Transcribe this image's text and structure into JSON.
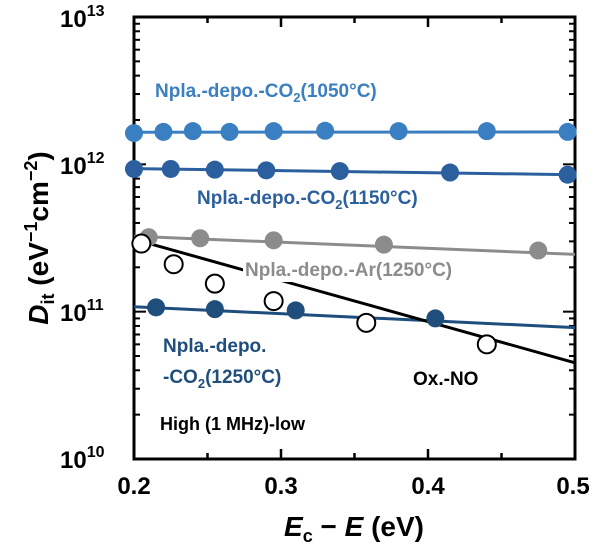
{
  "chart_data": {
    "type": "scatter",
    "title": "",
    "xlabel": {
      "main": "E",
      "sub1": "c",
      "minus": " − ",
      "var": "E",
      "unit": " (eV)"
    },
    "ylabel": {
      "main": "D",
      "sub": "it",
      "unit_pre": " (eV",
      "exp1": "−1",
      "unit_mid": "cm",
      "exp2": "−2",
      "unit_post": ")"
    },
    "xlim": [
      0.2,
      0.5
    ],
    "ylim": [
      10000000000.0,
      10000000000000.0
    ],
    "yscale": "log",
    "x_ticks": [
      "0.2",
      "0.3",
      "0.4",
      "0.5"
    ],
    "y_ticks": [
      {
        "base": "10",
        "exp": "10"
      },
      {
        "base": "10",
        "exp": "11"
      },
      {
        "base": "10",
        "exp": "12"
      },
      {
        "base": "10",
        "exp": "13"
      }
    ],
    "annotation": "High (1 MHz)-low",
    "series": [
      {
        "name": "Npla.-depo.-CO2(1050°C)",
        "label_parts": [
          "Npla.-depo.-CO",
          "2",
          "(1050°C)"
        ],
        "color": "#3a7fc1",
        "marker": "filled",
        "points": [
          [
            0.2,
            1630000000000.0
          ],
          [
            0.22,
            1660000000000.0
          ],
          [
            0.24,
            1680000000000.0
          ],
          [
            0.265,
            1660000000000.0
          ],
          [
            0.295,
            1680000000000.0
          ],
          [
            0.33,
            1690000000000.0
          ],
          [
            0.38,
            1680000000000.0
          ],
          [
            0.44,
            1680000000000.0
          ],
          [
            0.495,
            1660000000000.0
          ]
        ],
        "fit": [
          [
            0.2,
            1650000000000.0
          ],
          [
            0.5,
            1660000000000.0
          ]
        ]
      },
      {
        "name": "Npla.-depo.-CO2(1150°C)",
        "label_parts": [
          "Npla.-depo.-CO",
          "2",
          "(1150°C)"
        ],
        "color": "#2b5f9e",
        "marker": "filled",
        "points": [
          [
            0.2,
            930000000000.0
          ],
          [
            0.225,
            930000000000.0
          ],
          [
            0.255,
            920000000000.0
          ],
          [
            0.29,
            910000000000.0
          ],
          [
            0.34,
            900000000000.0
          ],
          [
            0.415,
            880000000000.0
          ],
          [
            0.495,
            850000000000.0
          ]
        ],
        "fit": [
          [
            0.2,
            935000000000.0
          ],
          [
            0.5,
            850000000000.0
          ]
        ]
      },
      {
        "name": "Npla.-depo.-Ar(1250°C)",
        "label_parts": [
          "Npla.-depo.-Ar(1250°C)"
        ],
        "color": "#8c8c8c",
        "marker": "filled",
        "points": [
          [
            0.21,
            320000000000.0
          ],
          [
            0.245,
            315000000000.0
          ],
          [
            0.295,
            305000000000.0
          ],
          [
            0.37,
            285000000000.0
          ],
          [
            0.475,
            260000000000.0
          ]
        ],
        "fit": [
          [
            0.2,
            325000000000.0
          ],
          [
            0.5,
            245000000000.0
          ]
        ]
      },
      {
        "name": "Npla.-depo.-CO2(1250°C)",
        "label_parts": [
          "Npla.-depo.-CO",
          "2",
          "(1250°C)"
        ],
        "label_lines": [
          "Npla.-depo.",
          "-CO",
          "2",
          "(1250°C)"
        ],
        "color": "#1f4e7d",
        "marker": "filled",
        "points": [
          [
            0.215,
            107000000000.0
          ],
          [
            0.255,
            104000000000.0
          ],
          [
            0.31,
            102000000000.0
          ],
          [
            0.405,
            90000000000.0
          ]
        ],
        "fit": [
          [
            0.2,
            108000000000.0
          ],
          [
            0.5,
            78000000000.0
          ]
        ]
      },
      {
        "name": "Ox.-NO",
        "label_parts": [
          "Ox.-NO"
        ],
        "color": "#000000",
        "marker": "open",
        "points": [
          [
            0.205,
            290000000000.0
          ],
          [
            0.227,
            210000000000.0
          ],
          [
            0.255,
            155000000000.0
          ],
          [
            0.295,
            118000000000.0
          ],
          [
            0.358,
            84000000000.0
          ],
          [
            0.44,
            60000000000.0
          ]
        ],
        "fit": [
          [
            0.2,
            310000000000.0
          ],
          [
            0.5,
            45000000000.0
          ]
        ]
      }
    ]
  }
}
